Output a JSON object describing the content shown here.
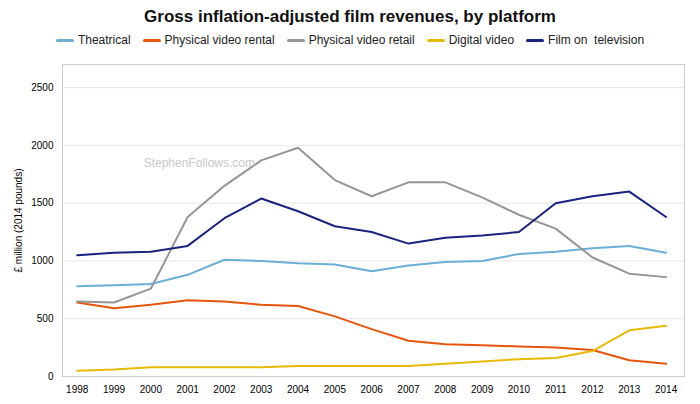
{
  "chart_data": {
    "type": "line",
    "title": "Gross inflation-adjusted film revenues, by platform",
    "ylabel": "£ million (2014 pounds)",
    "annotations": [
      "StephenFollows.com"
    ],
    "x": [
      1998,
      1999,
      2000,
      2001,
      2002,
      2003,
      2004,
      2005,
      2006,
      2007,
      2008,
      2009,
      2010,
      2011,
      2012,
      2013,
      2014
    ],
    "series": [
      {
        "name": "Theatrical",
        "color": "#6baed6",
        "values": [
          780,
          790,
          800,
          880,
          1010,
          1000,
          980,
          970,
          910,
          960,
          990,
          1000,
          1060,
          1080,
          1110,
          1130,
          1070
        ]
      },
      {
        "name": "Physical video rental",
        "color": "#e6550d",
        "values": [
          640,
          590,
          620,
          660,
          650,
          620,
          610,
          520,
          410,
          310,
          280,
          270,
          260,
          250,
          230,
          140,
          110
        ]
      },
      {
        "name": "Physical video retail",
        "color": "#969696",
        "values": [
          650,
          640,
          760,
          1380,
          1650,
          1870,
          1980,
          1700,
          1560,
          1680,
          1680,
          1550,
          1400,
          1280,
          1030,
          890,
          860
        ]
      },
      {
        "name": "Digital video",
        "color": "#e7ba08",
        "values": [
          50,
          60,
          80,
          80,
          80,
          80,
          90,
          90,
          90,
          90,
          110,
          130,
          150,
          160,
          220,
          400,
          440
        ]
      },
      {
        "name": "Film on  television",
        "color": "#1a237e",
        "values": [
          1050,
          1070,
          1080,
          1130,
          1370,
          1540,
          1430,
          1300,
          1250,
          1150,
          1200,
          1220,
          1250,
          1500,
          1560,
          1600,
          1380
        ]
      }
    ],
    "xlim": [
      1997.6,
      2014.5
    ],
    "xticks": [
      1998,
      1999,
      2000,
      2001,
      2002,
      2003,
      2004,
      2005,
      2006,
      2007,
      2008,
      2009,
      2010,
      2011,
      2012,
      2013,
      2014
    ],
    "ylim": [
      0,
      2700
    ],
    "yticks": [
      0,
      500,
      1000,
      1500,
      2000,
      2500
    ],
    "grid": true,
    "legend": "top"
  }
}
